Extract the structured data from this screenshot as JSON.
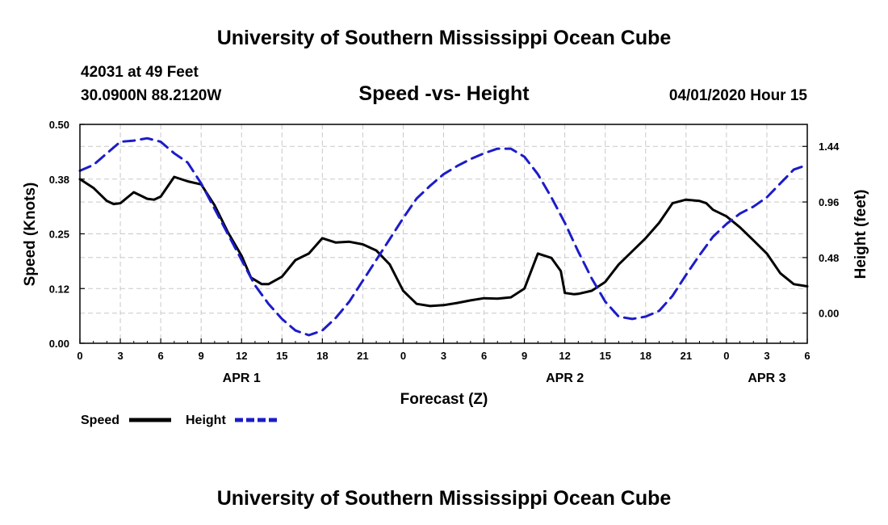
{
  "header": {
    "top_title": "University of Southern Mississippi Ocean Cube",
    "bottom_title": "University of Southern Mississippi Ocean Cube",
    "station_line": "42031 at 49 Feet",
    "position_line": "30.0900N 88.2120W",
    "timestamp": "04/01/2020 Hour 15"
  },
  "colors": {
    "speed": "#000000",
    "height": "#1c1cc8",
    "grid": "#c8c8c8"
  },
  "chart_data": {
    "type": "line",
    "title": "Speed -vs- Height",
    "xlabel": "Forecast (Z)",
    "ylabel_left": "Speed (Knots)",
    "ylabel_right": "Height (feet)",
    "x_range": [
      0,
      54
    ],
    "x_ticks": [
      0,
      3,
      6,
      9,
      12,
      15,
      18,
      21,
      24,
      27,
      30,
      33,
      36,
      39,
      42,
      45,
      48,
      51,
      54
    ],
    "x_tick_labels": [
      "0",
      "3",
      "6",
      "9",
      "12",
      "15",
      "18",
      "21",
      "0",
      "3",
      "6",
      "9",
      "12",
      "15",
      "18",
      "21",
      "0",
      "3",
      "6"
    ],
    "date_labels": [
      {
        "x": 12,
        "label": "APR 1"
      },
      {
        "x": 36,
        "label": "APR 2"
      },
      {
        "x": 51,
        "label": "APR 3"
      }
    ],
    "y_left": {
      "range": [
        0,
        0.5
      ],
      "ticks": [
        0,
        0.125,
        0.25,
        0.375,
        0.5
      ],
      "tick_labels": [
        "0.00",
        "0.12",
        "0.25",
        "0.38",
        "0.50"
      ]
    },
    "y_right": {
      "range": [
        -0.26,
        1.63
      ],
      "ticks": [
        0,
        0.48,
        0.96,
        1.44
      ],
      "tick_labels": [
        "0.00",
        "0.48",
        "0.96",
        "1.44"
      ]
    },
    "grid": true,
    "legend": [
      {
        "name": "Speed",
        "style": "solid"
      },
      {
        "name": "Height",
        "style": "dashed"
      }
    ],
    "series": [
      {
        "name": "Speed",
        "axis": "left",
        "x": [
          0,
          1,
          2,
          2.5,
          3,
          4,
          5,
          5.5,
          6,
          7,
          8,
          9,
          10,
          11,
          12,
          12.7,
          13.5,
          14,
          15,
          16,
          17,
          18,
          19,
          20,
          21,
          22,
          23,
          24,
          25,
          26,
          27,
          28,
          29,
          30,
          31,
          32,
          33,
          34,
          35,
          35.7,
          36,
          36.7,
          37,
          38,
          39,
          40,
          41,
          42,
          43,
          44,
          45,
          46,
          46.5,
          47,
          48,
          49,
          50,
          51,
          52,
          53,
          54
        ],
        "values": [
          0.375,
          0.355,
          0.325,
          0.318,
          0.32,
          0.345,
          0.33,
          0.328,
          0.335,
          0.38,
          0.37,
          0.363,
          0.315,
          0.253,
          0.2,
          0.15,
          0.135,
          0.135,
          0.152,
          0.19,
          0.205,
          0.24,
          0.23,
          0.232,
          0.226,
          0.212,
          0.18,
          0.12,
          0.09,
          0.085,
          0.087,
          0.092,
          0.098,
          0.103,
          0.102,
          0.105,
          0.125,
          0.205,
          0.195,
          0.165,
          0.115,
          0.112,
          0.113,
          0.12,
          0.14,
          0.18,
          0.21,
          0.24,
          0.275,
          0.32,
          0.328,
          0.325,
          0.32,
          0.305,
          0.29,
          0.265,
          0.235,
          0.205,
          0.16,
          0.135,
          0.13
        ]
      },
      {
        "name": "Height",
        "axis": "right",
        "x": [
          0,
          1,
          2,
          3,
          4,
          5,
          6,
          7,
          8,
          9,
          10,
          11,
          12,
          13,
          14,
          15,
          16,
          17,
          18,
          19,
          20,
          21,
          22,
          23,
          24,
          25,
          26,
          27,
          28,
          29,
          30,
          31,
          32,
          33,
          34,
          35,
          36,
          37,
          38,
          39,
          40,
          41,
          42,
          43,
          44,
          45,
          46,
          47,
          48,
          49,
          50,
          51,
          52,
          53,
          54
        ],
        "values": [
          1.23,
          1.28,
          1.38,
          1.48,
          1.49,
          1.51,
          1.48,
          1.38,
          1.3,
          1.12,
          0.9,
          0.68,
          0.46,
          0.24,
          0.08,
          -0.05,
          -0.15,
          -0.19,
          -0.15,
          -0.04,
          0.1,
          0.28,
          0.46,
          0.64,
          0.82,
          0.99,
          1.1,
          1.2,
          1.27,
          1.33,
          1.38,
          1.42,
          1.42,
          1.35,
          1.2,
          1.0,
          0.78,
          0.53,
          0.3,
          0.1,
          -0.03,
          -0.05,
          -0.03,
          0.02,
          0.15,
          0.33,
          0.5,
          0.66,
          0.77,
          0.86,
          0.92,
          1.0,
          1.12,
          1.24,
          1.28
        ]
      }
    ]
  }
}
